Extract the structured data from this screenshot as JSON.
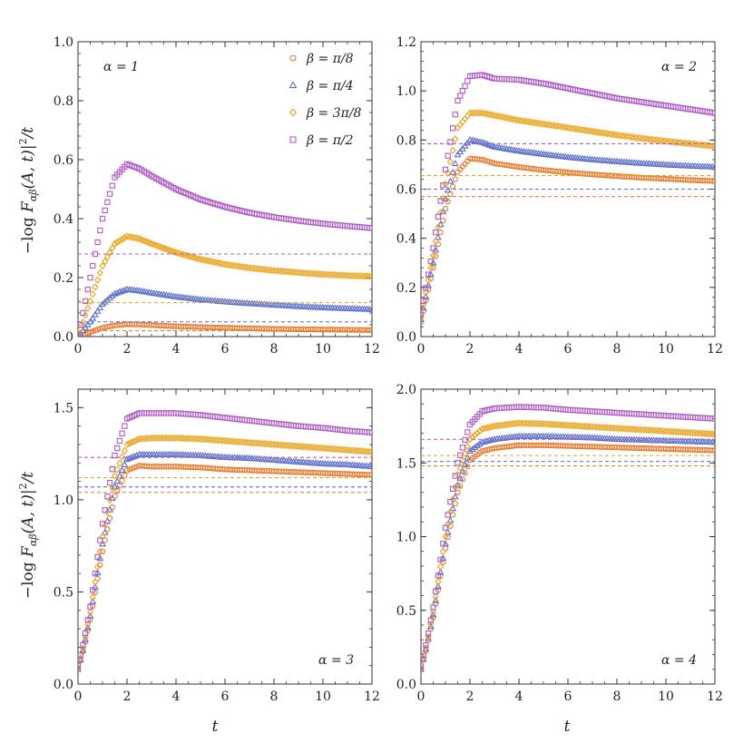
{
  "figure": {
    "ylabel": "−log|F_αβ(A,t)|²/t",
    "ylabel_parts": {
      "prefix": "−log ",
      "F": "F",
      "sub": "αβ",
      "args": "(A, t)",
      "sup": "2",
      "suffix": "/t"
    },
    "xlabel": "t"
  },
  "legend": [
    {
      "label": "β = π/8",
      "marker": "circle"
    },
    {
      "label": "β = π/4",
      "marker": "triangle"
    },
    {
      "label": "β = 3π/8",
      "marker": "diamond"
    },
    {
      "label": "β = π/2",
      "marker": "square"
    }
  ],
  "colors": {
    "beta_pi_8": "#e8792a",
    "beta_pi_4": "#5a6ec8",
    "beta_3pi_8": "#eaa31c",
    "beta_pi_2": "#b05ac6",
    "axis": "#333333"
  },
  "chart_data": [
    {
      "type": "scatter",
      "title": "α = 1",
      "alpha_label": "α = 1",
      "xlabel": "t",
      "ylabel": "−log|F_αβ(A,t)|²/t",
      "xlim": [
        0,
        12
      ],
      "ylim": [
        0,
        1.0
      ],
      "xticks": [
        0,
        2,
        4,
        6,
        8,
        10,
        12
      ],
      "xtick_labels": [
        "0",
        "2",
        "4",
        "6",
        "8",
        "10",
        "12"
      ],
      "yticks": [
        0,
        0.2,
        0.4,
        0.6,
        0.8,
        1.0
      ],
      "ytick_labels": [
        "0.0",
        "0.2",
        "0.4",
        "0.6",
        "0.8",
        "1.0"
      ],
      "series": [
        {
          "name": "β = π/8",
          "t": [
            0,
            0.5,
            1,
            1.5,
            2,
            2.5,
            3,
            4,
            5,
            6,
            7,
            8,
            9,
            10,
            11,
            12
          ],
          "values": [
            0,
            0.015,
            0.03,
            0.038,
            0.042,
            0.041,
            0.039,
            0.035,
            0.032,
            0.03,
            0.028,
            0.026,
            0.025,
            0.024,
            0.023,
            0.022
          ],
          "asymptote": 0.02
        },
        {
          "name": "β = π/4",
          "t": [
            0,
            0.5,
            1,
            1.5,
            2,
            2.5,
            3,
            4,
            5,
            6,
            7,
            8,
            9,
            10,
            11,
            12
          ],
          "values": [
            0,
            0.05,
            0.11,
            0.145,
            0.16,
            0.155,
            0.148,
            0.135,
            0.125,
            0.118,
            0.112,
            0.107,
            0.102,
            0.098,
            0.095,
            0.092
          ],
          "asymptote": 0.05
        },
        {
          "name": "β = 3π/8",
          "t": [
            0,
            0.5,
            1,
            1.5,
            2,
            2.5,
            3,
            4,
            5,
            6,
            7,
            8,
            9,
            10,
            11,
            12
          ],
          "values": [
            0,
            0.12,
            0.24,
            0.315,
            0.34,
            0.332,
            0.315,
            0.285,
            0.262,
            0.245,
            0.233,
            0.224,
            0.217,
            0.211,
            0.207,
            0.204
          ],
          "asymptote": 0.115
        },
        {
          "name": "β = π/2",
          "t": [
            0,
            0.5,
            1,
            1.5,
            2,
            2.5,
            3,
            4,
            5,
            6,
            7,
            8,
            9,
            10,
            11,
            12
          ],
          "values": [
            0,
            0.2,
            0.4,
            0.54,
            0.585,
            0.57,
            0.545,
            0.5,
            0.465,
            0.44,
            0.42,
            0.405,
            0.393,
            0.383,
            0.375,
            0.368
          ],
          "asymptote": 0.28
        }
      ]
    },
    {
      "type": "scatter",
      "title": "α = 2",
      "alpha_label": "α = 2",
      "xlabel": "t",
      "ylabel": "",
      "xlim": [
        0,
        12
      ],
      "ylim": [
        0,
        1.2
      ],
      "xticks": [
        0,
        2,
        4,
        6,
        8,
        10,
        12
      ],
      "xtick_labels": [
        "0",
        "2",
        "4",
        "6",
        "8",
        "10",
        "12"
      ],
      "yticks": [
        0,
        0.2,
        0.4,
        0.6,
        0.8,
        1.0,
        1.2
      ],
      "ytick_labels": [
        "0.0",
        "0.2",
        "0.4",
        "0.6",
        "0.8",
        "1.0",
        "1.2"
      ],
      "series": [
        {
          "name": "β = π/8",
          "t": [
            0,
            0.5,
            1,
            1.5,
            2,
            2.5,
            3,
            4,
            5,
            6,
            7,
            8,
            9,
            10,
            11,
            12
          ],
          "values": [
            0.06,
            0.28,
            0.52,
            0.67,
            0.725,
            0.72,
            0.705,
            0.69,
            0.678,
            0.668,
            0.66,
            0.653,
            0.647,
            0.642,
            0.637,
            0.633
          ],
          "asymptote": 0.57
        },
        {
          "name": "β = π/4",
          "t": [
            0,
            0.5,
            1,
            1.5,
            2,
            2.5,
            3,
            4,
            5,
            6,
            7,
            8,
            9,
            10,
            11,
            12
          ],
          "values": [
            0.07,
            0.3,
            0.56,
            0.74,
            0.8,
            0.79,
            0.772,
            0.755,
            0.742,
            0.73,
            0.72,
            0.712,
            0.705,
            0.699,
            0.694,
            0.69
          ],
          "asymptote": 0.6
        },
        {
          "name": "β = 3π/8",
          "t": [
            0,
            0.5,
            1,
            1.5,
            2,
            2.5,
            3,
            4,
            5,
            6,
            7,
            8,
            9,
            10,
            11,
            12
          ],
          "values": [
            0.08,
            0.33,
            0.62,
            0.85,
            0.91,
            0.91,
            0.9,
            0.88,
            0.865,
            0.85,
            0.835,
            0.82,
            0.807,
            0.795,
            0.785,
            0.775
          ],
          "asymptote": 0.655
        },
        {
          "name": "β = π/2",
          "t": [
            0,
            0.5,
            1,
            1.5,
            2,
            2.5,
            3,
            4,
            5,
            6,
            7,
            8,
            9,
            10,
            11,
            12
          ],
          "values": [
            0.09,
            0.36,
            0.68,
            0.96,
            1.06,
            1.065,
            1.05,
            1.045,
            1.03,
            1.01,
            0.99,
            0.97,
            0.955,
            0.94,
            0.925,
            0.91
          ],
          "asymptote": 0.785
        }
      ]
    },
    {
      "type": "scatter",
      "title": "α = 3",
      "alpha_label": "α = 3",
      "xlabel": "t",
      "ylabel": "−log|F_αβ(A,t)|²/t",
      "xlim": [
        0,
        12
      ],
      "ylim": [
        0,
        1.6
      ],
      "xticks": [
        0,
        2,
        4,
        6,
        8,
        10,
        12
      ],
      "xtick_labels": [
        "0",
        "2",
        "4",
        "6",
        "8",
        "10",
        "12"
      ],
      "yticks": [
        0,
        0.5,
        1.0,
        1.5
      ],
      "ytick_labels": [
        "0.0",
        "0.5",
        "1.0",
        "1.5"
      ],
      "series": [
        {
          "name": "β = π/8",
          "t": [
            0,
            0.25,
            0.5,
            1,
            1.5,
            2,
            2.5,
            3,
            4,
            5,
            6,
            7,
            8,
            9,
            10,
            11,
            12
          ],
          "values": [
            0.08,
            0.2,
            0.35,
            0.72,
            1.02,
            1.16,
            1.185,
            1.18,
            1.18,
            1.175,
            1.165,
            1.16,
            1.155,
            1.15,
            1.145,
            1.14,
            1.135
          ],
          "asymptote": 1.04
        },
        {
          "name": "β = π/4",
          "t": [
            0,
            0.25,
            0.5,
            1,
            1.5,
            2,
            2.5,
            3,
            4,
            5,
            6,
            7,
            8,
            9,
            10,
            11,
            12
          ],
          "values": [
            0.08,
            0.21,
            0.37,
            0.76,
            1.07,
            1.22,
            1.245,
            1.245,
            1.245,
            1.24,
            1.23,
            1.225,
            1.215,
            1.205,
            1.195,
            1.19,
            1.18
          ],
          "asymptote": 1.07
        },
        {
          "name": "β = 3π/8",
          "t": [
            0,
            0.25,
            0.5,
            1,
            1.5,
            2,
            2.5,
            3,
            4,
            5,
            6,
            7,
            8,
            9,
            10,
            11,
            12
          ],
          "values": [
            0.09,
            0.22,
            0.39,
            0.8,
            1.13,
            1.3,
            1.33,
            1.335,
            1.335,
            1.33,
            1.32,
            1.31,
            1.3,
            1.29,
            1.28,
            1.27,
            1.26
          ],
          "asymptote": 1.12
        },
        {
          "name": "β = π/2",
          "t": [
            0,
            0.25,
            0.5,
            1,
            1.5,
            2,
            2.5,
            3,
            4,
            5,
            6,
            7,
            8,
            9,
            10,
            11,
            12
          ],
          "values": [
            0.1,
            0.24,
            0.42,
            0.87,
            1.24,
            1.44,
            1.47,
            1.47,
            1.47,
            1.46,
            1.445,
            1.43,
            1.415,
            1.4,
            1.39,
            1.375,
            1.365
          ],
          "asymptote": 1.23
        }
      ]
    },
    {
      "type": "scatter",
      "title": "α = 4",
      "alpha_label": "α = 4",
      "xlabel": "t",
      "ylabel": "",
      "xlim": [
        0,
        12
      ],
      "ylim": [
        0,
        2.0
      ],
      "xticks": [
        0,
        2,
        4,
        6,
        8,
        10,
        12
      ],
      "xtick_labels": [
        "0",
        "2",
        "4",
        "6",
        "8",
        "10",
        "12"
      ],
      "yticks": [
        0,
        0.5,
        1.0,
        1.5,
        2.0
      ],
      "ytick_labels": [
        "0.0",
        "0.5",
        "1.0",
        "1.5",
        "2.0"
      ],
      "series": [
        {
          "name": "β = π/8",
          "t": [
            0,
            0.25,
            0.5,
            1,
            1.5,
            2,
            2.5,
            3,
            4,
            5,
            6,
            7,
            8,
            9,
            10,
            11,
            12
          ],
          "values": [
            0.1,
            0.26,
            0.45,
            0.92,
            1.3,
            1.52,
            1.58,
            1.6,
            1.62,
            1.62,
            1.615,
            1.61,
            1.605,
            1.6,
            1.595,
            1.59,
            1.585
          ],
          "asymptote": 1.48
        },
        {
          "name": "β = π/4",
          "t": [
            0,
            0.25,
            0.5,
            1,
            1.5,
            2,
            2.5,
            3,
            4,
            5,
            6,
            7,
            8,
            9,
            10,
            11,
            12
          ],
          "values": [
            0.1,
            0.27,
            0.47,
            0.95,
            1.35,
            1.58,
            1.64,
            1.66,
            1.68,
            1.68,
            1.675,
            1.67,
            1.66,
            1.655,
            1.65,
            1.645,
            1.64
          ],
          "asymptote": 1.51
        },
        {
          "name": "β = 3π/8",
          "t": [
            0,
            0.25,
            0.5,
            1,
            1.5,
            2,
            2.5,
            3,
            4,
            5,
            6,
            7,
            8,
            9,
            10,
            11,
            12
          ],
          "values": [
            0.11,
            0.28,
            0.49,
            1.0,
            1.42,
            1.66,
            1.73,
            1.75,
            1.77,
            1.765,
            1.755,
            1.745,
            1.735,
            1.725,
            1.715,
            1.705,
            1.695
          ],
          "asymptote": 1.55
        },
        {
          "name": "β = π/2",
          "t": [
            0,
            0.25,
            0.5,
            1,
            1.5,
            2,
            2.5,
            3,
            4,
            5,
            6,
            7,
            8,
            9,
            10,
            11,
            12
          ],
          "values": [
            0.12,
            0.3,
            0.52,
            1.06,
            1.5,
            1.76,
            1.85,
            1.87,
            1.88,
            1.875,
            1.86,
            1.85,
            1.84,
            1.83,
            1.82,
            1.81,
            1.8
          ],
          "asymptote": 1.66
        }
      ]
    }
  ]
}
